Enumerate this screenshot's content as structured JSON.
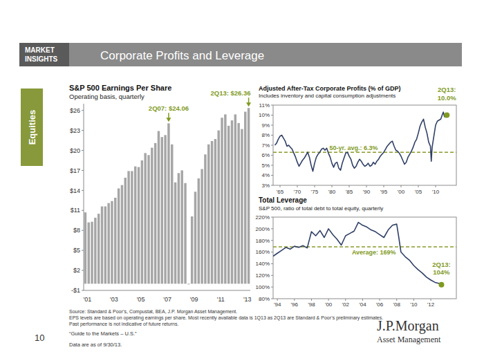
{
  "header": {
    "badge": [
      "MARKET",
      "INSIGHTS"
    ],
    "title": "Corporate Profits and Leverage"
  },
  "side_tab": "Equities",
  "chart_data": [
    {
      "type": "bar",
      "title": "S&P 500 Earnings Per Share",
      "subtitle": "Operating basis, quarterly",
      "categories": [
        "'01",
        null,
        null,
        null,
        null,
        null,
        null,
        null,
        "'03",
        null,
        null,
        null,
        null,
        null,
        null,
        null,
        "'05",
        null,
        null,
        null,
        null,
        null,
        null,
        null,
        "'07",
        null,
        null,
        null,
        null,
        null,
        null,
        null,
        "'09",
        null,
        null,
        null,
        null,
        null,
        null,
        null,
        "'11",
        null,
        null,
        null,
        null,
        null,
        null,
        null,
        "'13",
        null
      ],
      "values": [
        10.7,
        9.2,
        9.3,
        9.9,
        10.5,
        11.6,
        11.6,
        12.1,
        12.4,
        12.9,
        14.3,
        14.8,
        15.9,
        16.9,
        16.9,
        17.6,
        17.5,
        18.5,
        19.6,
        19.3,
        20.4,
        21.1,
        22.9,
        22.0,
        22.3,
        24.06,
        20.9,
        15.2,
        16.6,
        17.0,
        15.1,
        -0.1,
        10.1,
        13.8,
        15.8,
        17.2,
        19.4,
        20.9,
        21.4,
        21.7,
        23.0,
        24.9,
        25.4,
        23.7,
        24.5,
        25.4,
        24.1,
        23.2,
        25.8,
        26.36
      ],
      "color": "#a6a6a6",
      "ylim": [
        -1,
        27
      ],
      "yticks": [
        {
          "value": -1,
          "label": "-$1"
        },
        {
          "value": 2,
          "label": "$2"
        },
        {
          "value": 5,
          "label": "$5"
        },
        {
          "value": 8,
          "label": "$8"
        },
        {
          "value": 11,
          "label": "$11"
        },
        {
          "value": 14,
          "label": "$14"
        },
        {
          "value": 17,
          "label": "$17"
        },
        {
          "value": 20,
          "label": "$20"
        },
        {
          "value": 23,
          "label": "$23"
        },
        {
          "value": 26,
          "label": "$26"
        }
      ],
      "grid": false,
      "annotations": [
        {
          "label": "2Q07: $24.06",
          "value": 24.06
        },
        {
          "label": "2Q13: $26.36",
          "value": 26.36
        }
      ]
    },
    {
      "type": "line",
      "title": "Adjusted After-Tax Corporate Profits (% of GDP)",
      "subtitle": "Includes inventory and capital consumption adjustments",
      "x": [
        1963.5,
        1964,
        1964.5,
        1965,
        1965.5,
        1966,
        1966.5,
        1967,
        1967.5,
        1968,
        1968.5,
        1969,
        1969.5,
        1970,
        1970.5,
        1971,
        1971.5,
        1972,
        1972.5,
        1973,
        1973.5,
        1974,
        1974.5,
        1975,
        1975.5,
        1976,
        1976.5,
        1977,
        1977.5,
        1978,
        1978.5,
        1979,
        1979.5,
        1980,
        1980.5,
        1981,
        1981.5,
        1982,
        1982.5,
        1983,
        1983.5,
        1984,
        1984.5,
        1985,
        1985.5,
        1986,
        1986.5,
        1987,
        1987.5,
        1988,
        1988.5,
        1989,
        1989.5,
        1990,
        1990.5,
        1991,
        1991.5,
        1992,
        1992.5,
        1993,
        1993.5,
        1994,
        1994.5,
        1995,
        1995.5,
        1996,
        1996.5,
        1997,
        1997.5,
        1998,
        1998.5,
        1999,
        1999.5,
        2000,
        2000.5,
        2001,
        2001.5,
        2002,
        2002.5,
        2003,
        2003.5,
        2004,
        2004.5,
        2005,
        2005.5,
        2006,
        2006.5,
        2007,
        2007.5,
        2008,
        2008.5,
        2008.75,
        2009,
        2009.5,
        2010,
        2010.5,
        2011,
        2011.5,
        2012,
        2012.25,
        2012.5,
        2012.75,
        2013,
        2013.25
      ],
      "values": [
        7.0,
        7.2,
        7.6,
        7.9,
        8.0,
        7.7,
        7.4,
        6.9,
        7.0,
        6.8,
        6.6,
        6.2,
        5.8,
        5.3,
        4.9,
        5.2,
        5.5,
        5.7,
        6.0,
        6.3,
        5.8,
        5.0,
        4.4,
        5.2,
        5.8,
        6.1,
        6.3,
        6.6,
        6.7,
        6.5,
        6.7,
        6.2,
        5.8,
        5.2,
        4.8,
        5.2,
        5.3,
        4.7,
        4.5,
        5.2,
        5.7,
        6.2,
        6.3,
        5.9,
        5.6,
        5.0,
        4.7,
        4.9,
        5.3,
        5.6,
        5.4,
        5.1,
        4.9,
        5.0,
        5.2,
        4.9,
        5.0,
        5.3,
        5.1,
        5.4,
        5.6,
        5.9,
        6.1,
        6.3,
        6.6,
        6.9,
        7.1,
        7.3,
        7.4,
        6.9,
        6.5,
        6.4,
        6.2,
        5.9,
        5.5,
        5.1,
        5.3,
        5.8,
        6.1,
        6.4,
        6.8,
        7.3,
        7.6,
        8.2,
        8.9,
        9.3,
        9.6,
        8.8,
        8.2,
        7.3,
        6.9,
        5.4,
        6.8,
        7.9,
        9.0,
        9.4,
        9.5,
        9.6,
        10.1,
        10.3,
        9.9,
        9.8,
        10.0,
        10.0
      ],
      "color": "#2f3f66",
      "xlim": [
        1963,
        2016
      ],
      "xticks": [
        {
          "value": 1965,
          "label": "'65"
        },
        {
          "value": 1970,
          "label": "'70"
        },
        {
          "value": 1975,
          "label": "'75"
        },
        {
          "value": 1980,
          "label": "'80"
        },
        {
          "value": 1985,
          "label": "'85"
        },
        {
          "value": 1990,
          "label": "'90"
        },
        {
          "value": 1995,
          "label": "'95"
        },
        {
          "value": 2000,
          "label": "'00"
        },
        {
          "value": 2005,
          "label": "'05"
        },
        {
          "value": 2010,
          "label": "'10"
        }
      ],
      "ylim": [
        3,
        11
      ],
      "yticks": [
        {
          "value": 3,
          "label": "3%"
        },
        {
          "value": 4,
          "label": "4%"
        },
        {
          "value": 5,
          "label": "5%"
        },
        {
          "value": 6,
          "label": "6%"
        },
        {
          "value": 7,
          "label": "7%"
        },
        {
          "value": 8,
          "label": "8%"
        },
        {
          "value": 9,
          "label": "9%"
        },
        {
          "value": 10,
          "label": "10%"
        },
        {
          "value": 11,
          "label": "11%"
        }
      ],
      "grid": false,
      "reference_lines": [
        {
          "value": 6.3,
          "label": "50-yr. avg.: 6.3%"
        }
      ],
      "annotations": [
        {
          "label": "2Q13:",
          "value_label": "10.0%",
          "x": 2013.25,
          "value": 10.0
        }
      ]
    },
    {
      "type": "line",
      "title": "Total Leverage",
      "subtitle": "S&P 500, ratio of total debt to total equity, quarterly",
      "x": [
        1993.5,
        1994,
        1994.5,
        1995,
        1995.5,
        1996,
        1996.5,
        1997,
        1997.5,
        1998,
        1998.5,
        1999,
        1999.5,
        2000,
        2000.5,
        2001,
        2001.5,
        2002,
        2002.5,
        2003,
        2003.5,
        2004,
        2004.5,
        2005,
        2005.5,
        2006,
        2006.5,
        2007,
        2007.5,
        2008,
        2008.25,
        2008.5,
        2009,
        2009.5,
        2010,
        2010.5,
        2011,
        2011.5,
        2012,
        2012.5,
        2013,
        2013.25
      ],
      "values": [
        153,
        158,
        163,
        168,
        165,
        170,
        168,
        171,
        167,
        195,
        188,
        197,
        185,
        200,
        190,
        182,
        172,
        188,
        192,
        196,
        211,
        206,
        203,
        198,
        195,
        190,
        185,
        198,
        206,
        208,
        185,
        160,
        152,
        146,
        137,
        130,
        124,
        117,
        112,
        108,
        106,
        104
      ],
      "color": "#2f3f66",
      "xlim": [
        1993.5,
        2015
      ],
      "xticks": [
        {
          "value": 1994,
          "label": "'94"
        },
        {
          "value": 1996,
          "label": "'96"
        },
        {
          "value": 1998,
          "label": "'98"
        },
        {
          "value": 2000,
          "label": "'00"
        },
        {
          "value": 2002,
          "label": "'02"
        },
        {
          "value": 2004,
          "label": "'04"
        },
        {
          "value": 2006,
          "label": "'06"
        },
        {
          "value": 2008,
          "label": "'08"
        },
        {
          "value": 2010,
          "label": "'10"
        },
        {
          "value": 2012,
          "label": "'12"
        }
      ],
      "ylim": [
        80,
        220
      ],
      "yticks": [
        {
          "value": 80,
          "label": "80%"
        },
        {
          "value": 100,
          "label": "100%"
        },
        {
          "value": 120,
          "label": "120%"
        },
        {
          "value": 140,
          "label": "140%"
        },
        {
          "value": 160,
          "label": "160%"
        },
        {
          "value": 180,
          "label": "180%"
        },
        {
          "value": 200,
          "label": "200%"
        },
        {
          "value": 220,
          "label": "220%"
        }
      ],
      "grid": false,
      "reference_lines": [
        {
          "value": 169,
          "label": "Average: 169%"
        }
      ],
      "annotations": [
        {
          "label": "2Q13:",
          "value_label": "104%",
          "x": 2013.25,
          "value": 104
        }
      ]
    }
  ],
  "footer": {
    "source_lines": [
      "Source: Standard & Poor’s, Compustat, BEA, J.P. Morgan Asset Management.",
      "EPS levels are based on operating earnings per share. Most recently available data is 1Q13 as 2Q13 are Standard & Poor’s preliminary estimates.",
      "Past performance is not indicative of future returns."
    ],
    "page": "10",
    "guide": "“Guide to the Markets – U.S.”",
    "data_as_of": "Data are as of 9/30/13.",
    "logo": "J.P.Morgan",
    "logo_sub": "Asset Management"
  }
}
